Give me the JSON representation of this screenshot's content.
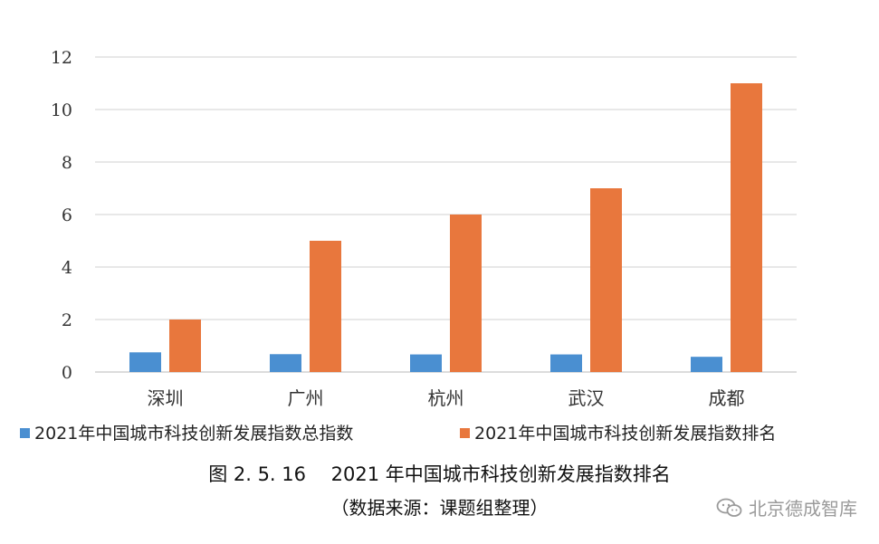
{
  "chart_data": {
    "type": "bar",
    "categories": [
      "深圳",
      "广州",
      "杭州",
      "武汉",
      "成都"
    ],
    "series": [
      {
        "name": "2021年中国城市科技创新发展指数总指数",
        "values": [
          0.75,
          0.68,
          0.67,
          0.67,
          0.58
        ],
        "color": "#4a8fd1"
      },
      {
        "name": "2021年中国城市科技创新发展指数排名",
        "values": [
          2,
          5,
          6,
          7,
          11
        ],
        "color": "#e8773d"
      }
    ],
    "ylim": [
      0,
      12
    ],
    "yticks": [
      "0",
      "2",
      "4",
      "6",
      "8",
      "10",
      "12"
    ],
    "grid": true,
    "legend_position": "bottom",
    "title": "",
    "xlabel": "",
    "ylabel": ""
  },
  "caption": {
    "title": "图 2. 5. 16　 2021 年中国城市科技创新发展指数排名",
    "source": "（数据来源：课题组整理）"
  },
  "watermark": {
    "text": "北京德成智库",
    "icon": "wechat-icon"
  }
}
